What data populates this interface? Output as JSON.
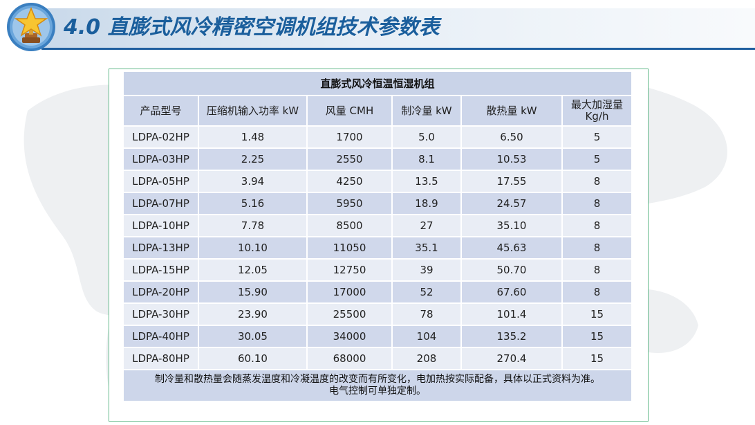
{
  "header": {
    "title": "4.0 直膨式风冷精密空调机组技术参数表",
    "badge_icon": "star-trophy-icon",
    "accent_color": "#1a5e9c"
  },
  "table": {
    "caption": "直膨式风冷恒温恒湿机组",
    "columns": [
      "产品型号",
      "压缩机输入功率 kW",
      "风量 CMH",
      "制冷量 kW",
      "散热量 kW",
      "最大加湿量\nKg/h"
    ],
    "rows": [
      [
        "LDPA-02HP",
        "1.48",
        "1700",
        "5.0",
        "6.50",
        "5"
      ],
      [
        "LDPA-03HP",
        "2.25",
        "2550",
        "8.1",
        "10.53",
        "5"
      ],
      [
        "LDPA-05HP",
        "3.94",
        "4250",
        "13.5",
        "17.55",
        "8"
      ],
      [
        "LDPA-07HP",
        "5.16",
        "5950",
        "18.9",
        "24.57",
        "8"
      ],
      [
        "LDPA-10HP",
        "7.78",
        "8500",
        "27",
        "35.10",
        "8"
      ],
      [
        "LDPA-13HP",
        "10.10",
        "11050",
        "35.1",
        "45.63",
        "8"
      ],
      [
        "LDPA-15HP",
        "12.05",
        "12750",
        "39",
        "50.70",
        "8"
      ],
      [
        "LDPA-20HP",
        "15.90",
        "17000",
        "52",
        "67.60",
        "8"
      ],
      [
        "LDPA-30HP",
        "23.90",
        "25500",
        "78",
        "101.4",
        "15"
      ],
      [
        "LDPA-40HP",
        "30.05",
        "34000",
        "104",
        "135.2",
        "15"
      ],
      [
        "LDPA-80HP",
        "60.10",
        "68000",
        "208",
        "270.4",
        "15"
      ]
    ],
    "note_line1": "制冷量和散热量会随蒸发温度和冷凝温度的改变而有所变化，电加热按实际配备，具体以正式资料为准。",
    "note_line2": "电气控制可单独定制。"
  }
}
